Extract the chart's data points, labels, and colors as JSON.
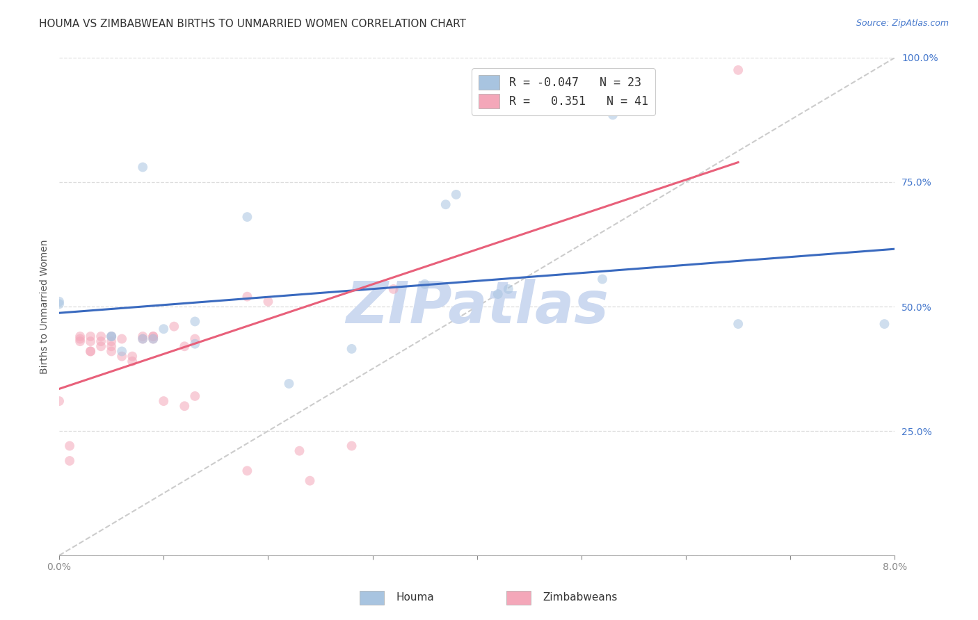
{
  "title": "HOUMA VS ZIMBABWEAN BIRTHS TO UNMARRIED WOMEN CORRELATION CHART",
  "source": "Source: ZipAtlas.com",
  "ylabel": "Births to Unmarried Women",
  "xlim": [
    0.0,
    0.08
  ],
  "ylim": [
    0.0,
    1.0
  ],
  "x_ticks": [
    0.0,
    0.01,
    0.02,
    0.03,
    0.04,
    0.05,
    0.06,
    0.07,
    0.08
  ],
  "y_ticks": [
    0.0,
    0.25,
    0.5,
    0.75,
    1.0
  ],
  "houma_R": "-0.047",
  "houma_N": "23",
  "zimbabwe_R": "0.351",
  "zimbabwe_N": "41",
  "houma_color": "#a8c4e0",
  "zimbabwe_color": "#f4a7b9",
  "trend_houma_color": "#3a6abf",
  "trend_zimbabwe_color": "#e8607a",
  "diagonal_color": "#cccccc",
  "houma_points_x": [
    0.0,
    0.0,
    0.005,
    0.005,
    0.006,
    0.008,
    0.008,
    0.009,
    0.01,
    0.013,
    0.013,
    0.018,
    0.022,
    0.028,
    0.035,
    0.037,
    0.038,
    0.042,
    0.043,
    0.052,
    0.053,
    0.065,
    0.079
  ],
  "houma_points_y": [
    0.505,
    0.51,
    0.44,
    0.44,
    0.41,
    0.435,
    0.78,
    0.435,
    0.455,
    0.425,
    0.47,
    0.68,
    0.345,
    0.415,
    0.545,
    0.705,
    0.725,
    0.525,
    0.535,
    0.555,
    0.885,
    0.465,
    0.465
  ],
  "zimbabwe_points_x": [
    0.0,
    0.001,
    0.001,
    0.002,
    0.002,
    0.002,
    0.003,
    0.003,
    0.003,
    0.003,
    0.004,
    0.004,
    0.004,
    0.005,
    0.005,
    0.005,
    0.005,
    0.006,
    0.006,
    0.007,
    0.007,
    0.008,
    0.008,
    0.009,
    0.009,
    0.009,
    0.01,
    0.011,
    0.012,
    0.012,
    0.013,
    0.013,
    0.018,
    0.018,
    0.02,
    0.023,
    0.024,
    0.028,
    0.032,
    0.05,
    0.065
  ],
  "zimbabwe_points_y": [
    0.31,
    0.19,
    0.22,
    0.43,
    0.435,
    0.44,
    0.41,
    0.41,
    0.43,
    0.44,
    0.44,
    0.43,
    0.42,
    0.44,
    0.43,
    0.42,
    0.41,
    0.435,
    0.4,
    0.4,
    0.39,
    0.435,
    0.44,
    0.44,
    0.435,
    0.44,
    0.31,
    0.46,
    0.3,
    0.42,
    0.32,
    0.435,
    0.17,
    0.52,
    0.51,
    0.21,
    0.15,
    0.22,
    0.535,
    0.955,
    0.975
  ],
  "marker_size": 100,
  "marker_alpha": 0.55,
  "background_color": "#ffffff",
  "grid_color": "#dddddd",
  "title_fontsize": 11,
  "label_fontsize": 10,
  "tick_fontsize": 10,
  "legend_fontsize": 12,
  "watermark_text": "ZIPatlas",
  "watermark_color": "#ccd9f0",
  "watermark_fontsize": 60
}
